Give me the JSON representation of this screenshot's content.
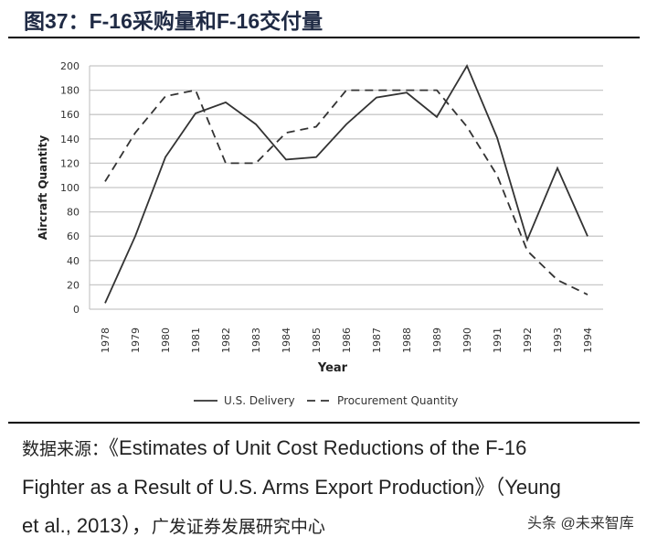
{
  "title": "图37：F-16采购量和F-16交付量",
  "source": {
    "line1_prefix": "数据来源：",
    "line1": "《Estimates of Unit Cost Reductions of the F-16",
    "line2": "Fighter as a Result of U.S. Arms Export Production》（Yeung",
    "line3": "et al., 2013），",
    "line3_suffix": "广发证券发展研究中心"
  },
  "watermark": "头条 @未来智库",
  "chart_data": {
    "type": "line",
    "xlabel": "Year",
    "ylabel": "Aircraft Quantity",
    "ylim": [
      0,
      200
    ],
    "yticks": [
      0,
      20,
      40,
      60,
      80,
      100,
      120,
      140,
      160,
      180,
      200
    ],
    "grid": true,
    "legend_position": "bottom",
    "x": [
      "1978",
      "1979",
      "1980",
      "1981",
      "1982",
      "1983",
      "1984",
      "1985",
      "1986",
      "1987",
      "1988",
      "1989",
      "1990",
      "1991",
      "1992",
      "1993",
      "1994"
    ],
    "series": [
      {
        "name": "U.S. Delivery",
        "style": "solid",
        "values": [
          5,
          60,
          125,
          161,
          170,
          152,
          123,
          125,
          152,
          174,
          178,
          158,
          200,
          141,
          57,
          116,
          60
        ]
      },
      {
        "name": "Procurement Quantity",
        "style": "dashed",
        "values": [
          105,
          145,
          175,
          180,
          120,
          120,
          145,
          150,
          180,
          180,
          180,
          180,
          150,
          110,
          48,
          24,
          12
        ]
      }
    ]
  }
}
